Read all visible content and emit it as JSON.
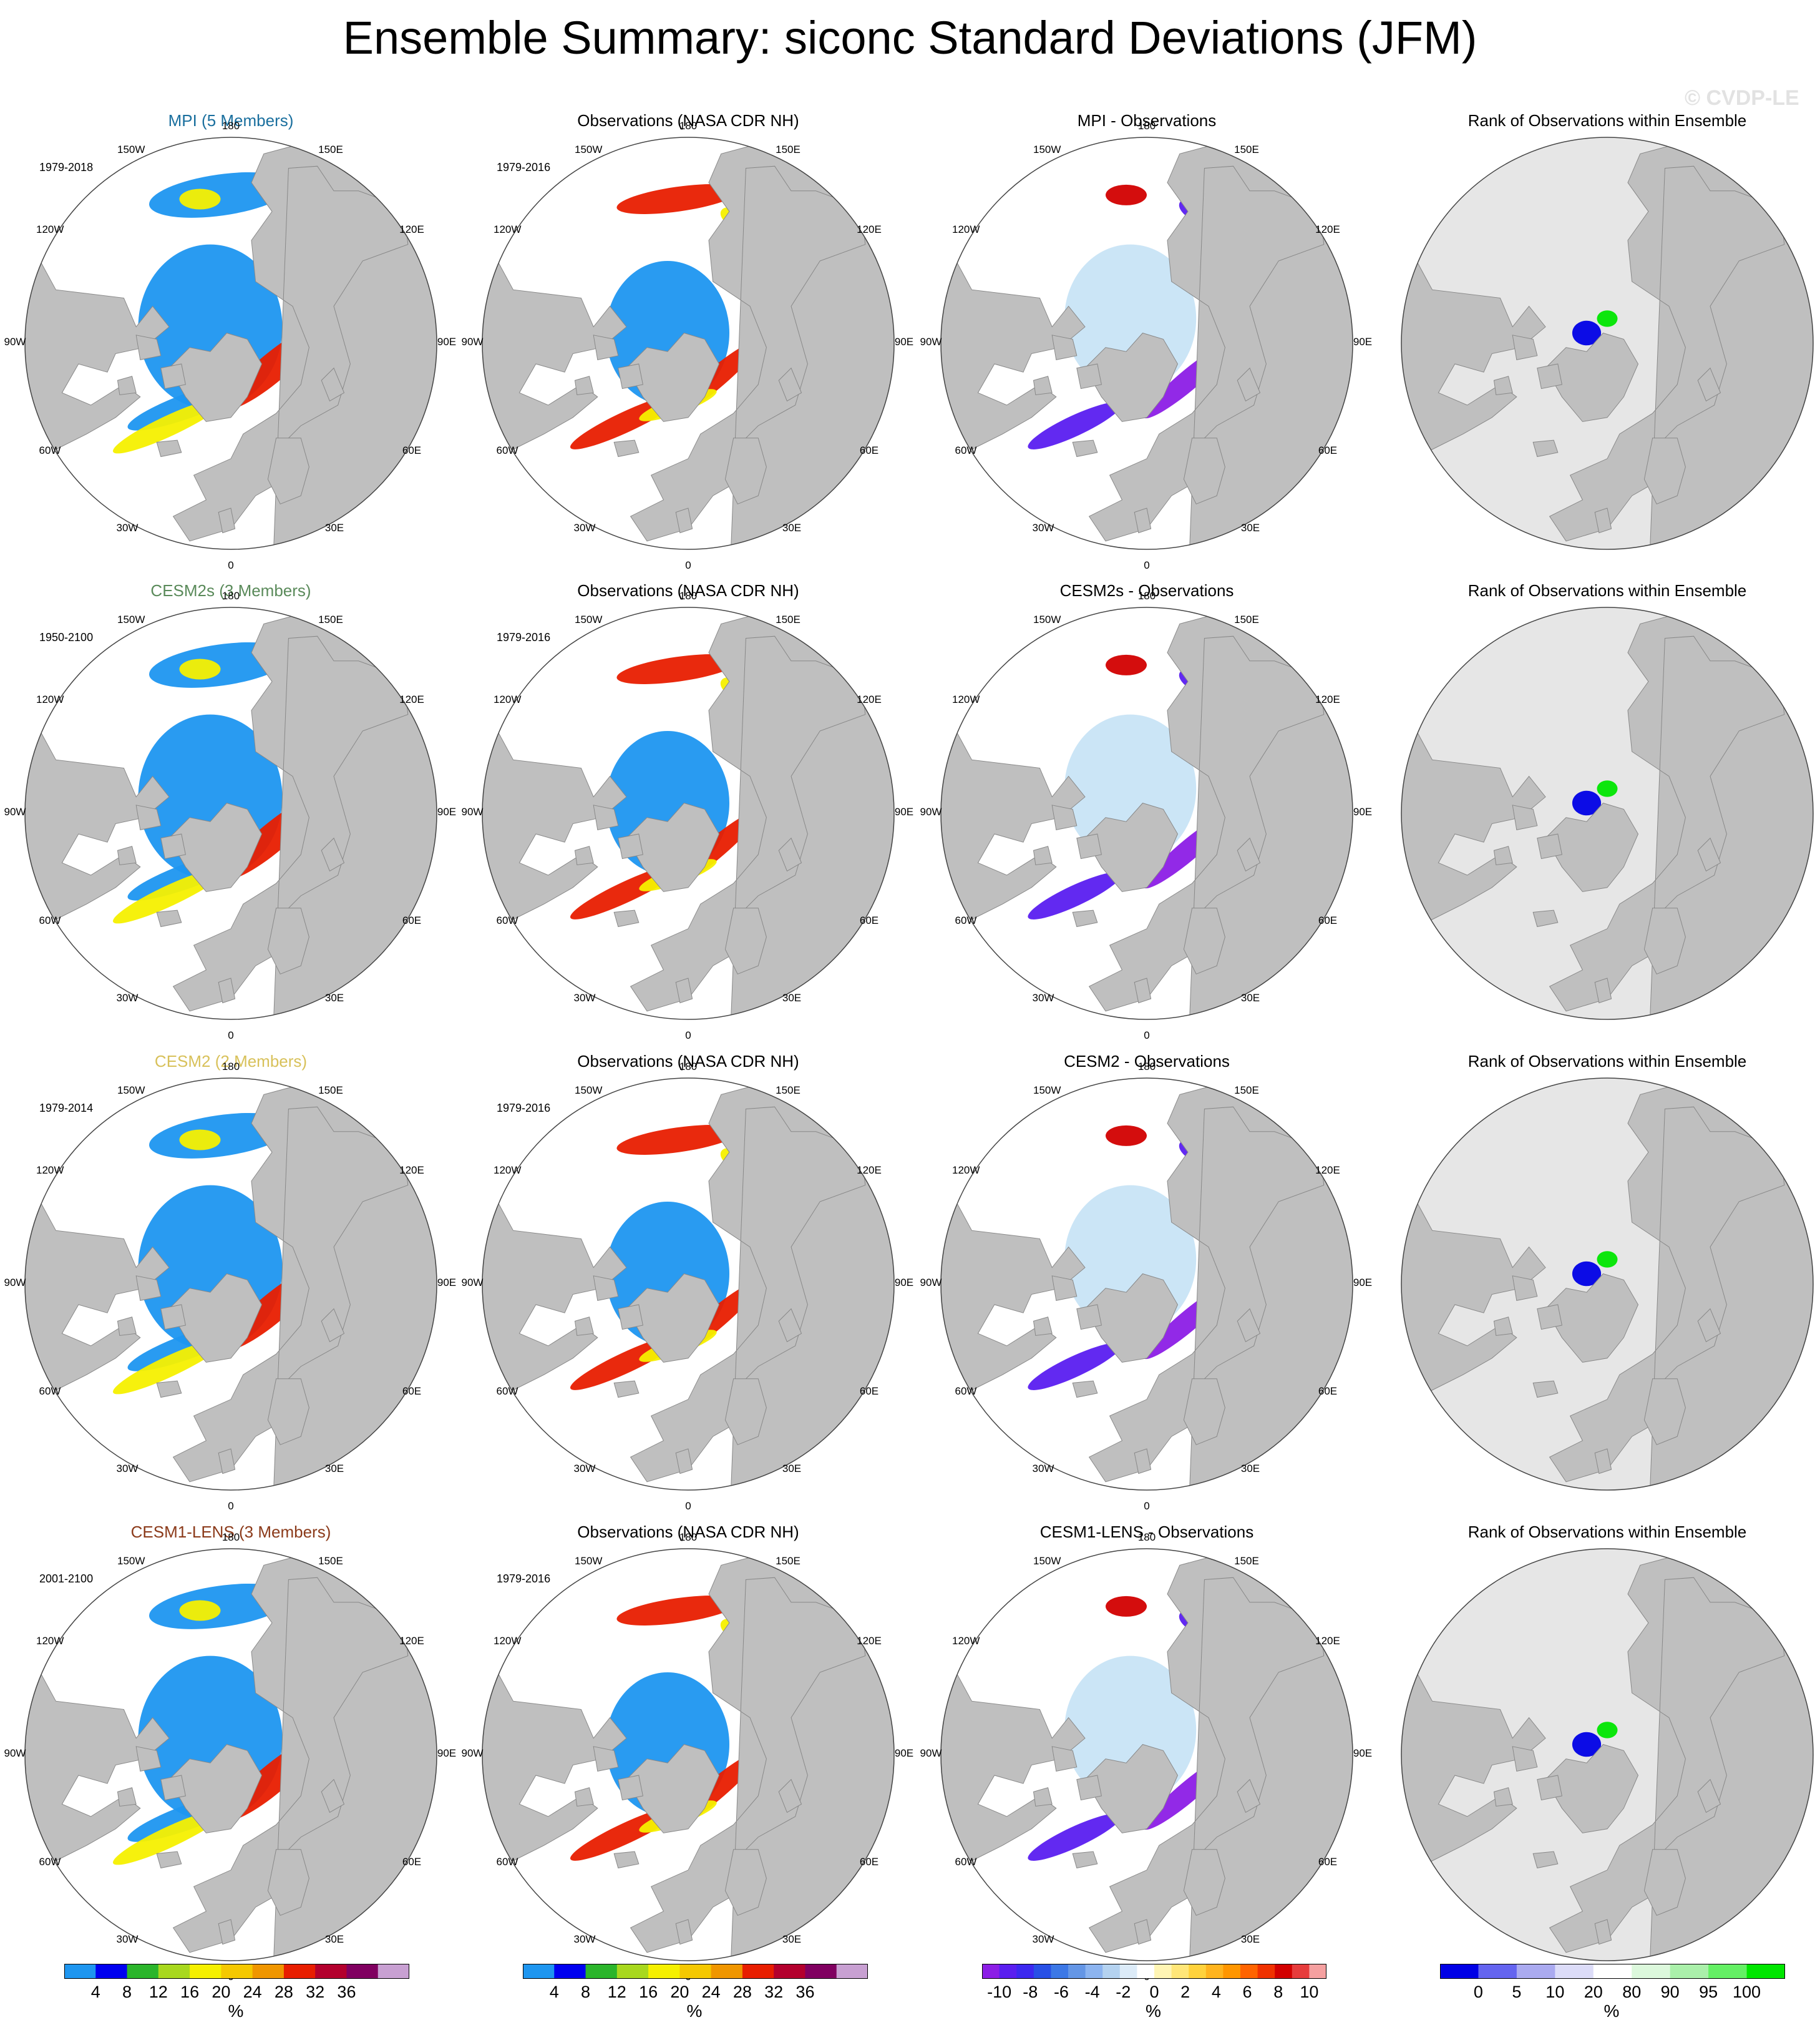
{
  "figure": {
    "title": "Ensemble Summary: siconc Standard Deviations (JFM)",
    "watermark": "© CVDP-LE"
  },
  "colors": {
    "land": "#bfbfbf",
    "ocean": "#ffffff",
    "rank_background": "#e6e6e6",
    "coast": "#888888"
  },
  "rows": [
    {
      "model_title": "MPI (5 Members)",
      "model_color": "#1a6f9e",
      "model_period": "1979-2018",
      "obs_title": "Observations (NASA CDR NH)",
      "obs_period": "1979-2016",
      "diff_title": "MPI - Observations",
      "rank_title": "Rank of Observations within Ensemble"
    },
    {
      "model_title": "CESM2s (3 Members)",
      "model_color": "#5a8a5a",
      "model_period": "1950-2100",
      "obs_title": "Observations (NASA CDR NH)",
      "obs_period": "1979-2016",
      "diff_title": "CESM2s - Observations",
      "rank_title": "Rank of Observations within Ensemble"
    },
    {
      "model_title": "CESM2 (2 Members)",
      "model_color": "#d8c15a",
      "model_period": "1979-2014",
      "obs_title": "Observations (NASA CDR NH)",
      "obs_period": "1979-2016",
      "diff_title": "CESM2 - Observations",
      "rank_title": "Rank of Observations within Ensemble"
    },
    {
      "model_title": "CESM1-LENS (3 Members)",
      "model_color": "#8b3a1a",
      "model_period": "2001-2100",
      "obs_title": "Observations (NASA CDR NH)",
      "obs_period": "1979-2016",
      "diff_title": "CESM1-LENS - Observations",
      "rank_title": "Rank of Observations within Ensemble"
    }
  ],
  "longitude_labels": {
    "top": "180",
    "bottom": "0",
    "upper_left": "150W",
    "upper_right": "150E",
    "left_upper": "120W",
    "right_upper": "120E",
    "left": "90W",
    "right": "90E",
    "left_lower": "60W",
    "right_lower": "60E",
    "lower_left": "30W",
    "lower_right": "30E"
  },
  "colorbars": {
    "stddev": {
      "unit": "%",
      "ticks": [
        "4",
        "8",
        "12",
        "16",
        "20",
        "24",
        "28",
        "32",
        "36"
      ],
      "colors": [
        "#1e96f0",
        "#0000f0",
        "#2bb52b",
        "#a8d81e",
        "#f5f000",
        "#f5c800",
        "#f09600",
        "#e81e00",
        "#b3002d",
        "#800060",
        "#c8a0d2"
      ]
    },
    "diff": {
      "unit": "%",
      "ticks": [
        "-10",
        "-8",
        "-6",
        "-4",
        "-2",
        "0",
        "2",
        "4",
        "6",
        "8",
        "10"
      ],
      "colors": [
        "#8c1ee6",
        "#5a1ef0",
        "#3c28f0",
        "#2850e6",
        "#3c78e6",
        "#6496e6",
        "#8cb4f0",
        "#b4d2f0",
        "#dcebf8",
        "#ffffff",
        "#fff5b4",
        "#ffe678",
        "#ffd23c",
        "#ffb41e",
        "#ff9600",
        "#ff6400",
        "#f03200",
        "#d20000",
        "#e63c3c",
        "#f5a0a0"
      ]
    },
    "rank": {
      "unit": "%",
      "ticks": [
        "0",
        "5",
        "10",
        "20",
        "80",
        "90",
        "95",
        "100"
      ],
      "colors": [
        "#0000e6",
        "#6464f0",
        "#aaaaf0",
        "#dcdcf8",
        "#ffffff",
        "#dcf8dc",
        "#aaf0aa",
        "#64f064",
        "#00e600"
      ]
    }
  }
}
